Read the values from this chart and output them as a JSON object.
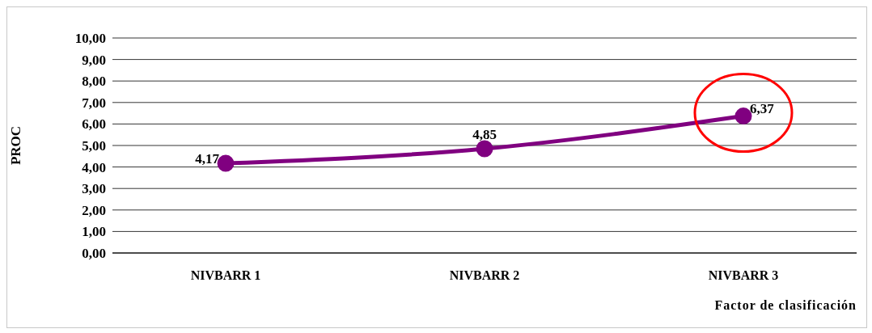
{
  "chart_data": {
    "type": "line",
    "ylabel": "PROC",
    "xlabel": "Factor de clasificación",
    "categories": [
      "NIVBARR 1",
      "NIVBARR 2",
      "NIVBARR 3"
    ],
    "series": [
      {
        "color": "#800080",
        "values": [
          4.17,
          4.85,
          6.37
        ],
        "value_labels": [
          "4,17",
          "4,85",
          "6,37"
        ]
      }
    ],
    "ylim": [
      0,
      10
    ],
    "yticks": [
      {
        "value": 0,
        "label": "0,00"
      },
      {
        "value": 1,
        "label": "1,00"
      },
      {
        "value": 2,
        "label": "2,00"
      },
      {
        "value": 3,
        "label": "3,00"
      },
      {
        "value": 4,
        "label": "4,00"
      },
      {
        "value": 5,
        "label": "5,00"
      },
      {
        "value": 6,
        "label": "6,00"
      },
      {
        "value": 7,
        "label": "7,00"
      },
      {
        "value": 8,
        "label": "8,00"
      },
      {
        "value": 9,
        "label": "9,00"
      },
      {
        "value": 10,
        "label": "10,00"
      }
    ],
    "grid": "y",
    "marker": "circle"
  }
}
